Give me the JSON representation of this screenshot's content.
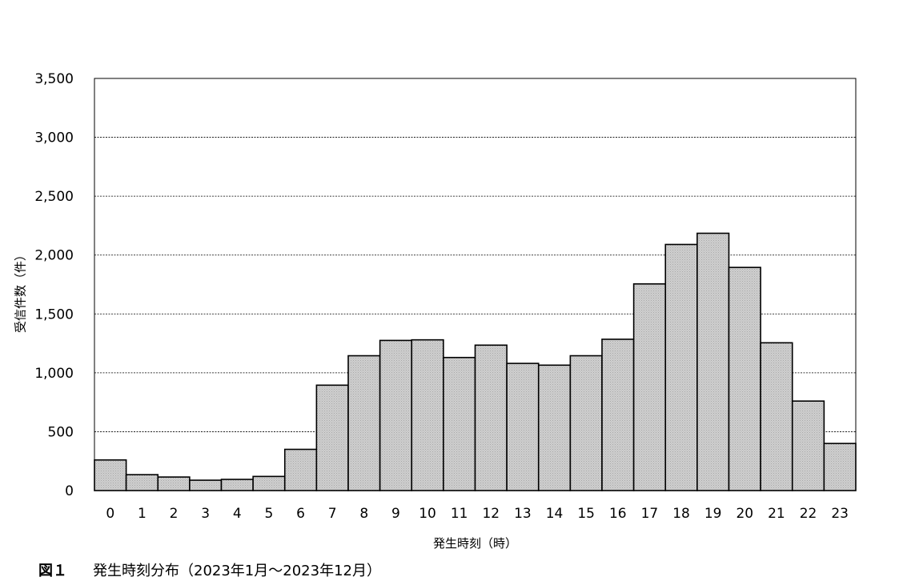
{
  "chart_data": {
    "type": "bar",
    "categories": [
      "0",
      "1",
      "2",
      "3",
      "4",
      "5",
      "6",
      "7",
      "8",
      "9",
      "10",
      "11",
      "12",
      "13",
      "14",
      "15",
      "16",
      "17",
      "18",
      "19",
      "20",
      "21",
      "22",
      "23"
    ],
    "values": [
      260,
      135,
      115,
      88,
      95,
      120,
      350,
      895,
      1145,
      1275,
      1280,
      1130,
      1235,
      1080,
      1065,
      1145,
      1285,
      1755,
      2090,
      2185,
      1895,
      1255,
      760,
      400
    ],
    "title": "",
    "xlabel": "発生時刻（時）",
    "ylabel": "受信件数（件）",
    "ylim": [
      0,
      3500
    ],
    "yticks": [
      0,
      500,
      1000,
      1500,
      2000,
      2500,
      3000,
      3500
    ],
    "ytick_labels": [
      "0",
      "500",
      "1,000",
      "1,500",
      "2,000",
      "2,500",
      "3,000",
      "3,500"
    ],
    "grid": true,
    "legend": "none",
    "bar_color": "#c8c8c8",
    "edge_color": "#000000"
  },
  "caption": {
    "figure_number": "図１",
    "text": "発生時刻分布（2023年1月～2023年12月）"
  }
}
